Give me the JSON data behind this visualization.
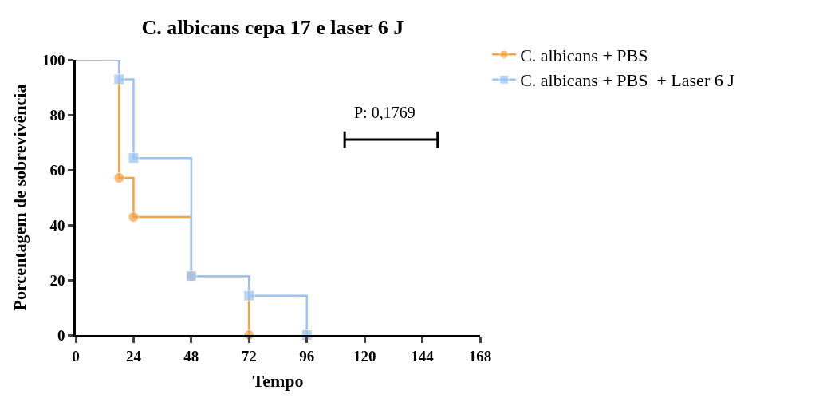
{
  "chart_data": {
    "type": "step",
    "title": "C. albicans cepa 17 e laser 6 J",
    "xlabel": "Tempo",
    "ylabel": "Porcentagem de sobrevivência",
    "series": [
      {
        "name": "C. albicans + PBS",
        "color": "#f7a040",
        "x": [
          0,
          18,
          24,
          48,
          72
        ],
        "values": [
          100,
          57.1,
          42.9,
          21.4,
          0
        ],
        "marker": "circle"
      },
      {
        "name": "C. albicans + PBS  + Laser 6 J",
        "color": "#99c4f5",
        "x": [
          0,
          18,
          24,
          48,
          72,
          96
        ],
        "values": [
          100,
          92.9,
          64.3,
          21.4,
          14.3,
          0
        ],
        "marker": "square"
      }
    ],
    "xlim": [
      0,
      168
    ],
    "xticks": [
      0,
      24,
      48,
      72,
      96,
      120,
      144,
      168
    ],
    "ylim": [
      0,
      100
    ],
    "yticks": [
      0,
      20,
      40,
      60,
      80,
      100
    ],
    "annotations": [
      "P: 0,1769"
    ],
    "legend": "top right",
    "line_style": "solid"
  }
}
